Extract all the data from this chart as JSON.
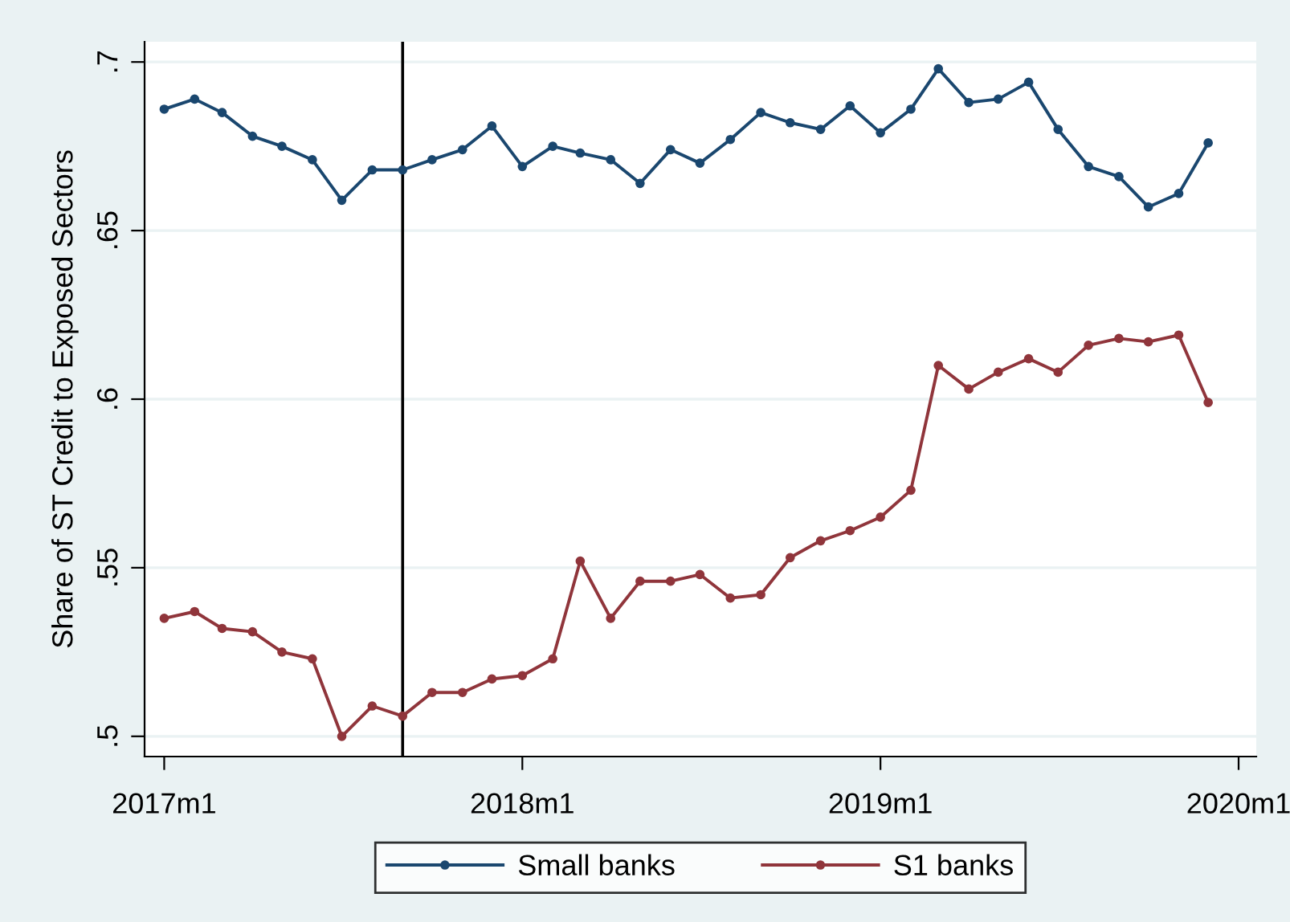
{
  "chart_data": {
    "type": "line",
    "ylabel": "Share of ST Credit to Exposed Sectors",
    "x": [
      "2017-01",
      "2017-02",
      "2017-03",
      "2017-04",
      "2017-05",
      "2017-06",
      "2017-07",
      "2017-08",
      "2017-09",
      "2017-10",
      "2017-11",
      "2017-12",
      "2018-01",
      "2018-02",
      "2018-03",
      "2018-04",
      "2018-05",
      "2018-06",
      "2018-07",
      "2018-08",
      "2018-09",
      "2018-10",
      "2018-11",
      "2018-12",
      "2019-01",
      "2019-02",
      "2019-03",
      "2019-04",
      "2019-05",
      "2019-06",
      "2019-07",
      "2019-08",
      "2019-09",
      "2019-10",
      "2019-11",
      "2019-12"
    ],
    "series": [
      {
        "name": "Small banks",
        "color": "#1a476f",
        "values": [
          0.686,
          0.689,
          0.685,
          0.678,
          0.675,
          0.671,
          0.659,
          0.668,
          0.668,
          0.671,
          0.674,
          0.681,
          0.669,
          0.675,
          0.673,
          0.671,
          0.664,
          0.674,
          0.67,
          0.677,
          0.685,
          0.682,
          0.68,
          0.687,
          0.679,
          0.686,
          0.698,
          0.688,
          0.689,
          0.694,
          0.68,
          0.669,
          0.666,
          0.657,
          0.661,
          0.676
        ]
      },
      {
        "name": "S1 banks",
        "color": "#90353b",
        "values": [
          0.535,
          0.537,
          0.532,
          0.531,
          0.525,
          0.523,
          0.5,
          0.509,
          0.506,
          0.513,
          0.513,
          0.517,
          0.518,
          0.523,
          0.552,
          0.535,
          0.546,
          0.546,
          0.548,
          0.541,
          0.542,
          0.553,
          0.558,
          0.561,
          0.565,
          0.573,
          0.61,
          0.603,
          0.608,
          0.612,
          0.608,
          0.616,
          0.618,
          0.617,
          0.619,
          0.599
        ]
      }
    ],
    "xlim": [
      "2016-12-12",
      "2020-01-19"
    ],
    "xticks": [
      {
        "value": "2017-01",
        "label": "2017m1"
      },
      {
        "value": "2018-01",
        "label": "2018m1"
      },
      {
        "value": "2019-01",
        "label": "2019m1"
      },
      {
        "value": "2020-01",
        "label": "2020m1"
      }
    ],
    "ylim": [
      0.494,
      0.706
    ],
    "yticks": [
      {
        "value": 0.5,
        "label": ".5"
      },
      {
        "value": 0.55,
        "label": ".55"
      },
      {
        "value": 0.6,
        "label": ".6"
      },
      {
        "value": 0.65,
        "label": ".65"
      },
      {
        "value": 0.7,
        "label": ".7"
      }
    ],
    "ref_lines": [
      {
        "axis": "x",
        "value": "2017-09",
        "color": "#000000"
      }
    ],
    "grid": "y",
    "legend": "bottom",
    "marker": "circle",
    "line_style": "solid"
  }
}
